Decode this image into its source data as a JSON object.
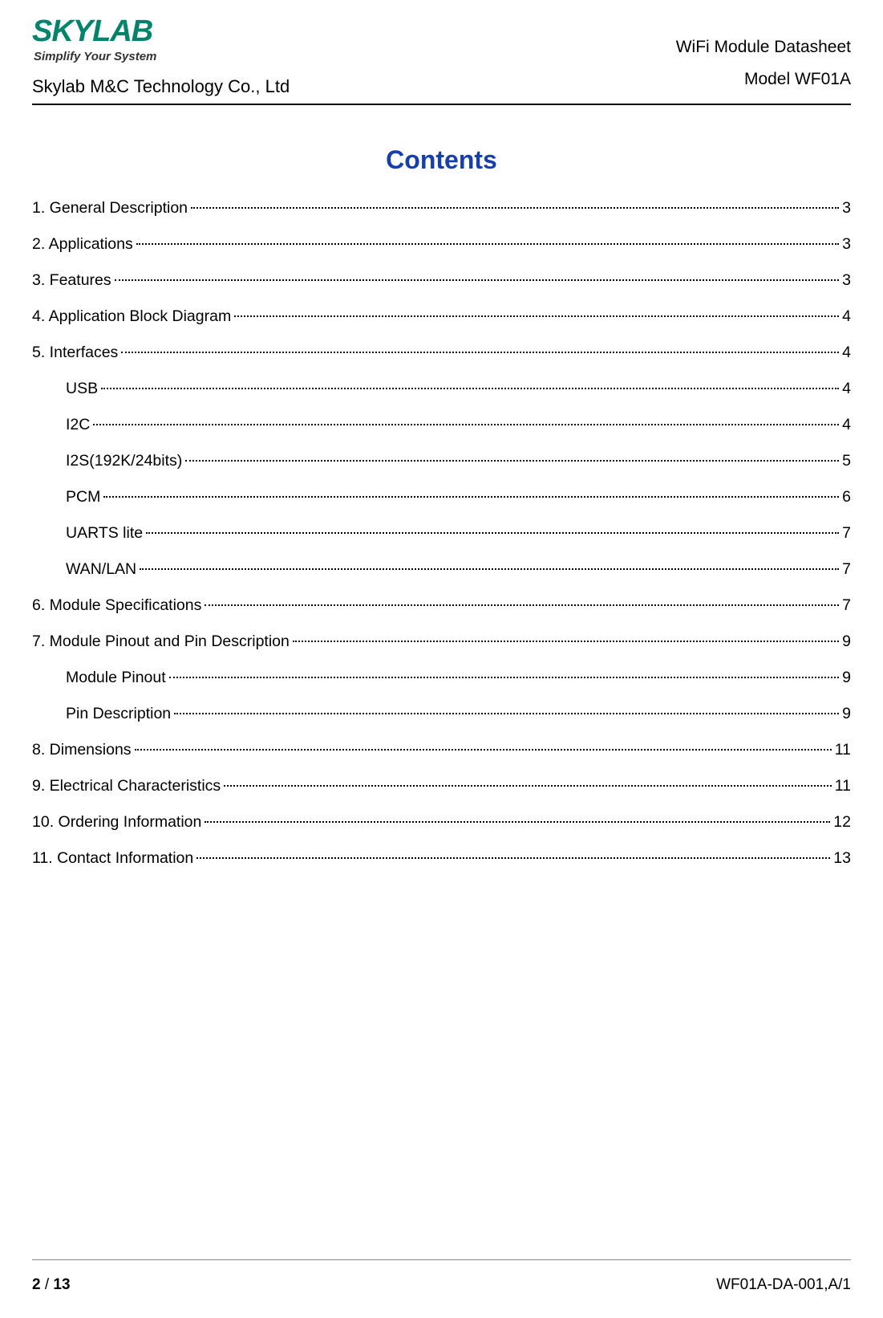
{
  "header": {
    "logo_text": "SKYLAB",
    "tagline": "Simplify Your System",
    "company": "Skylab M&C Technology Co., Ltd",
    "doc_title": "WiFi  Module  Datasheet",
    "model": "Model WF01A"
  },
  "contents_heading": "Contents",
  "toc": [
    {
      "label": "1. General Description",
      "page": "3",
      "level": 0
    },
    {
      "label": "2. Applications",
      "page": "3",
      "level": 0
    },
    {
      "label": "3. Features",
      "page": "3",
      "level": 0
    },
    {
      "label": "4. Application Block Diagram",
      "page": "4",
      "level": 0
    },
    {
      "label": "5. Interfaces",
      "page": "4",
      "level": 0
    },
    {
      "label": "USB",
      "page": "4",
      "level": 1
    },
    {
      "label": "I2C",
      "page": "4",
      "level": 1
    },
    {
      "label": "I2S(192K/24bits)",
      "page": "5",
      "level": 1
    },
    {
      "label": "PCM",
      "page": "6",
      "level": 1
    },
    {
      "label": "UARTS lite",
      "page": "7",
      "level": 1
    },
    {
      "label": "WAN/LAN",
      "page": "7",
      "level": 1
    },
    {
      "label": "6. Module Specifications",
      "page": "7",
      "level": 0
    },
    {
      "label": "7. Module Pinout and Pin Description",
      "page": "9",
      "level": 0
    },
    {
      "label": "Module Pinout",
      "page": "9",
      "level": 1
    },
    {
      "label": "Pin Description",
      "page": "9",
      "level": 1
    },
    {
      "label": "8. Dimensions",
      "page": "11",
      "level": 0
    },
    {
      "label": "9. Electrical Characteristics",
      "page": "11",
      "level": 0
    },
    {
      "label": "10. Ordering Information",
      "page": "12",
      "level": 0
    },
    {
      "label": "11. Contact Information",
      "page": "13",
      "level": 0
    }
  ],
  "footer": {
    "page_current": "2",
    "page_sep": " / ",
    "page_total": "13",
    "docref": "WF01A-DA-001,A/1"
  },
  "colors": {
    "brand_green": "#00856a",
    "heading_blue": "#163eaf",
    "text": "#000000",
    "bg": "#ffffff"
  }
}
